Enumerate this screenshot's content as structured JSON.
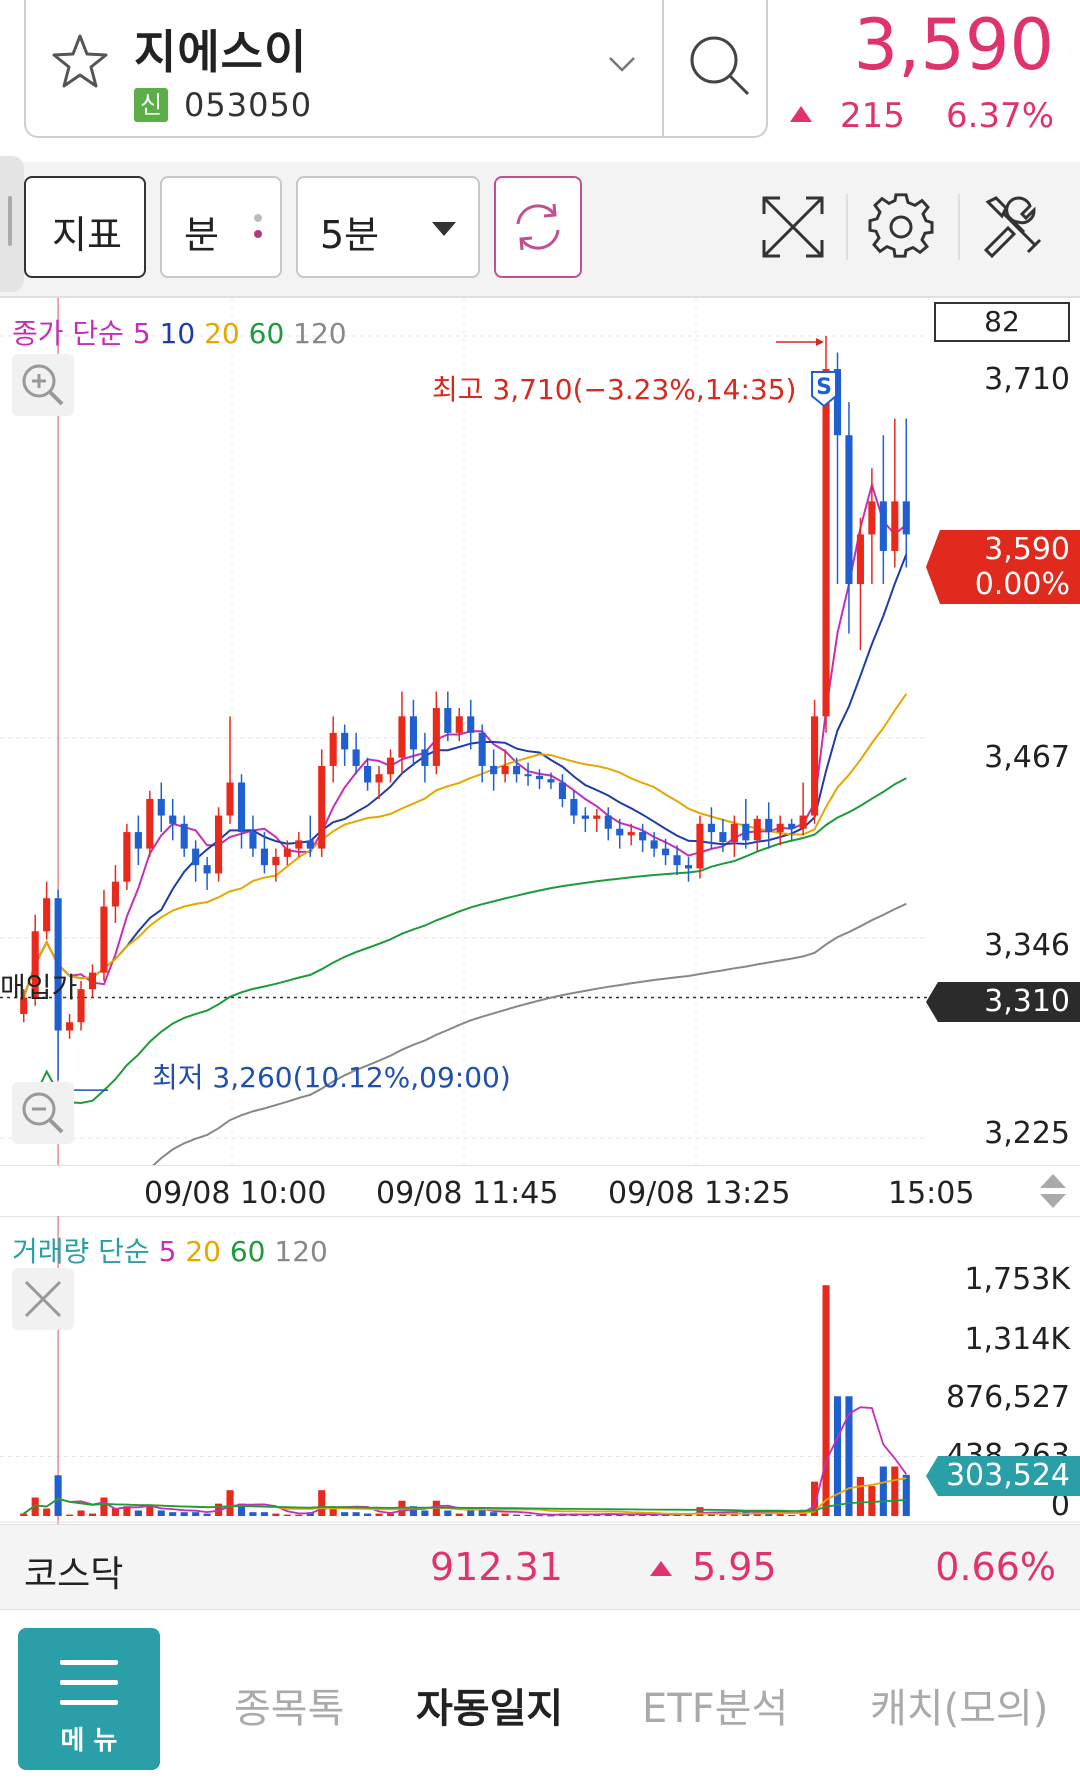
{
  "stock": {
    "name": "지에스이",
    "market_badge": "신",
    "code": "053050",
    "price": "3,590",
    "change": "215",
    "change_pct": "6.37%",
    "up_color": "#e0336c"
  },
  "toolbar": {
    "indicator_label": "지표",
    "unit_label": "분",
    "interval_value": "5분",
    "icons": [
      "refresh-icon",
      "expand-icon",
      "gear-icon",
      "tools-icon"
    ]
  },
  "price_chart": {
    "legend": {
      "prefix": "종가 단순",
      "periods": [
        {
          "label": "5",
          "color": "#c42fb8"
        },
        {
          "label": "10",
          "color": "#1f3ca8"
        },
        {
          "label": "20",
          "color": "#e5a800"
        },
        {
          "label": "60",
          "color": "#1f9a3c"
        },
        {
          "label": "120",
          "color": "#888888"
        }
      ]
    },
    "value_box": "82",
    "y_labels": [
      "3,710",
      "3,467",
      "3,346",
      "3,225"
    ],
    "current_tag": {
      "price": "3,590",
      "pct": "0.00%"
    },
    "buy_price_tag": "3,310",
    "buy_price_label": "매입가",
    "high_annotation": "최고 3,710(−3.23%,14:35)",
    "low_annotation": "최저 3,260(10.12%,09:00)",
    "signal_marker": "S",
    "x_labels": [
      "09/08 10:00",
      "09/08 11:45",
      "09/08 13:25",
      "15:05"
    ]
  },
  "volume_chart": {
    "legend": {
      "prefix": "거래량 단순",
      "periods": [
        {
          "label": "5",
          "color": "#c42fb8"
        },
        {
          "label": "20",
          "color": "#e5a800"
        },
        {
          "label": "60",
          "color": "#1f9a3c"
        },
        {
          "label": "120",
          "color": "#888888"
        }
      ]
    },
    "y_labels": [
      "1,753K",
      "1,314K",
      "876,527",
      "438,263",
      "0"
    ],
    "current_tag": "303,524"
  },
  "index_bar": {
    "name": "코스닥",
    "value": "912.31",
    "change": "5.95",
    "change_pct": "0.66%"
  },
  "bottom_nav": {
    "menu_label": "메 뉴",
    "items": [
      "종목톡",
      "자동일지",
      "ETF분석",
      "캐치(모의)"
    ],
    "active_index": 1
  },
  "chart_data": {
    "type": "candlestick",
    "interval": "5분",
    "y_axis": {
      "min": 3225,
      "max": 3710,
      "ticks": [
        3225,
        3346,
        3467,
        3710
      ]
    },
    "x_ticks": [
      "09/08 10:00",
      "09/08 11:45",
      "09/08 13:25",
      "15:05"
    ],
    "high": 3710,
    "low": 3260,
    "last": 3590,
    "buy_price": 3310,
    "candles": [
      [
        3300,
        3315,
        3295,
        3310
      ],
      [
        3310,
        3360,
        3305,
        3350
      ],
      [
        3350,
        3380,
        3345,
        3370
      ],
      [
        3370,
        3375,
        3260,
        3290
      ],
      [
        3290,
        3300,
        3285,
        3295
      ],
      [
        3295,
        3320,
        3290,
        3315
      ],
      [
        3315,
        3330,
        3310,
        3325
      ],
      [
        3325,
        3375,
        3320,
        3365
      ],
      [
        3365,
        3390,
        3355,
        3380
      ],
      [
        3380,
        3415,
        3375,
        3410
      ],
      [
        3410,
        3420,
        3390,
        3400
      ],
      [
        3400,
        3435,
        3395,
        3430
      ],
      [
        3430,
        3440,
        3410,
        3420
      ],
      [
        3420,
        3430,
        3405,
        3415
      ],
      [
        3415,
        3420,
        3395,
        3400
      ],
      [
        3400,
        3405,
        3380,
        3390
      ],
      [
        3390,
        3395,
        3375,
        3385
      ],
      [
        3385,
        3425,
        3380,
        3420
      ],
      [
        3420,
        3480,
        3415,
        3440
      ],
      [
        3440,
        3445,
        3400,
        3410
      ],
      [
        3410,
        3420,
        3395,
        3400
      ],
      [
        3400,
        3410,
        3385,
        3390
      ],
      [
        3390,
        3400,
        3380,
        3395
      ],
      [
        3395,
        3405,
        3390,
        3400
      ],
      [
        3400,
        3410,
        3395,
        3405
      ],
      [
        3405,
        3420,
        3395,
        3400
      ],
      [
        3400,
        3460,
        3395,
        3450
      ],
      [
        3450,
        3480,
        3440,
        3470
      ],
      [
        3470,
        3475,
        3450,
        3460
      ],
      [
        3460,
        3470,
        3445,
        3450
      ],
      [
        3450,
        3455,
        3435,
        3440
      ],
      [
        3440,
        3450,
        3430,
        3445
      ],
      [
        3445,
        3460,
        3440,
        3455
      ],
      [
        3455,
        3495,
        3445,
        3480
      ],
      [
        3480,
        3490,
        3450,
        3460
      ],
      [
        3460,
        3470,
        3440,
        3450
      ],
      [
        3450,
        3495,
        3445,
        3485
      ],
      [
        3485,
        3495,
        3465,
        3470
      ],
      [
        3470,
        3485,
        3465,
        3480
      ],
      [
        3480,
        3490,
        3460,
        3470
      ],
      [
        3470,
        3475,
        3440,
        3450
      ],
      [
        3450,
        3460,
        3435,
        3445
      ],
      [
        3445,
        3460,
        3440,
        3450
      ],
      [
        3450,
        3455,
        3440,
        3445
      ],
      [
        3445,
        3452,
        3438,
        3444
      ],
      [
        3444,
        3448,
        3436,
        3442
      ],
      [
        3442,
        3446,
        3436,
        3440
      ],
      [
        3440,
        3445,
        3425,
        3430
      ],
      [
        3430,
        3435,
        3415,
        3420
      ],
      [
        3420,
        3425,
        3410,
        3418
      ],
      [
        3418,
        3424,
        3410,
        3420
      ],
      [
        3420,
        3425,
        3405,
        3412
      ],
      [
        3412,
        3418,
        3400,
        3408
      ],
      [
        3408,
        3415,
        3402,
        3410
      ],
      [
        3410,
        3415,
        3398,
        3405
      ],
      [
        3405,
        3410,
        3395,
        3400
      ],
      [
        3400,
        3406,
        3390,
        3396
      ],
      [
        3396,
        3402,
        3384,
        3390
      ],
      [
        3390,
        3395,
        3380,
        3388
      ],
      [
        3388,
        3420,
        3382,
        3415
      ],
      [
        3415,
        3425,
        3400,
        3410
      ],
      [
        3410,
        3418,
        3398,
        3404
      ],
      [
        3404,
        3420,
        3395,
        3415
      ],
      [
        3415,
        3430,
        3400,
        3405
      ],
      [
        3405,
        3420,
        3398,
        3418
      ],
      [
        3418,
        3428,
        3400,
        3410
      ],
      [
        3410,
        3420,
        3402,
        3415
      ],
      [
        3415,
        3418,
        3405,
        3412
      ],
      [
        3412,
        3440,
        3408,
        3420
      ],
      [
        3420,
        3490,
        3415,
        3480
      ],
      [
        3480,
        3710,
        3470,
        3690
      ],
      [
        3690,
        3700,
        3560,
        3650
      ],
      [
        3650,
        3670,
        3530,
        3560
      ],
      [
        3560,
        3600,
        3520,
        3590
      ],
      [
        3590,
        3630,
        3560,
        3610
      ],
      [
        3610,
        3650,
        3560,
        3580
      ],
      [
        3580,
        3660,
        3570,
        3610
      ],
      [
        3610,
        3660,
        3570,
        3590
      ]
    ],
    "ma_periods": [
      5,
      10,
      20,
      60,
      120
    ],
    "volume": {
      "y_axis": {
        "min": 0,
        "max": 1753000,
        "ticks": [
          0,
          438263,
          876527,
          1314000,
          1753000
        ]
      },
      "last": 303524
    }
  }
}
